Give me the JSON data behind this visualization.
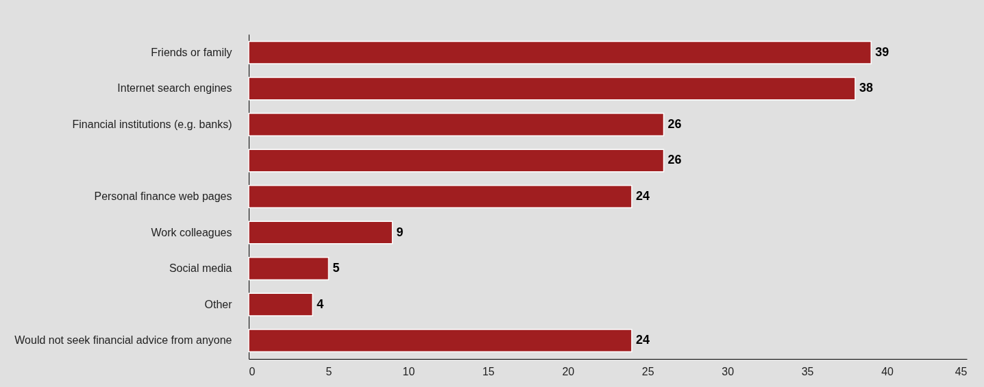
{
  "chart_data": {
    "type": "bar",
    "orientation": "horizontal",
    "categories": [
      "Friends or family",
      "Internet search engines",
      "Financial institutions (e.g. banks)",
      null,
      "Personal finance web pages",
      "Work colleagues",
      "Social media",
      "Other",
      "Would not seek financial advice from anyone"
    ],
    "values": [
      39,
      38,
      26,
      26,
      24,
      9,
      5,
      4,
      24
    ],
    "color": "#a01e20",
    "xlim": [
      0,
      45
    ],
    "xticks": [
      0,
      5,
      10,
      15,
      20,
      25,
      30,
      35,
      40,
      45
    ],
    "data_labels": true
  }
}
